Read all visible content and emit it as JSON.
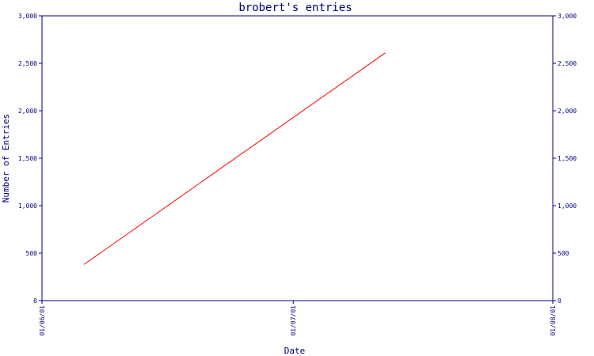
{
  "chart_data": {
    "type": "line",
    "title": "brobert's entries",
    "xlabel": "Date",
    "ylabel": "Number of Entries",
    "x_type": "date",
    "x_ticks": [
      "2001-06-01",
      "2001-07-01",
      "2001-08-01"
    ],
    "x_tick_labels": [
      "01/06/01",
      "01/07/01",
      "01/08/01"
    ],
    "xlim": [
      "2001-06-01",
      "2001-08-01"
    ],
    "ylim": [
      0,
      3000
    ],
    "y_ticks": [
      0,
      500,
      1000,
      1500,
      2000,
      2500,
      3000
    ],
    "y_tick_labels": [
      "0",
      "500",
      "1,000",
      "1,500",
      "2,000",
      "2,500",
      "3,000"
    ],
    "series": [
      {
        "color": "#ff0000",
        "points": [
          {
            "x": "2001-06-06",
            "y": 380
          },
          {
            "x": "2001-07-12",
            "y": 2610
          }
        ]
      }
    ],
    "grid": false,
    "legend": "none"
  }
}
